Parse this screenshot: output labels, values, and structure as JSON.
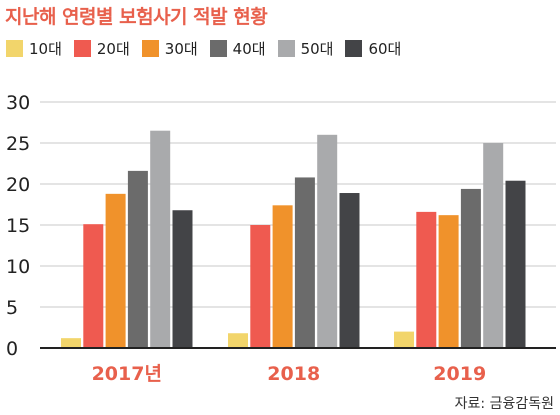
{
  "title": "지난해 연령별 보험사기 적발 현황",
  "source": "자료: 금융감독원",
  "colors": {
    "title": "#e8604c",
    "grid": "#c8c8c8",
    "axis": "#222222",
    "category_label": "#e8604c"
  },
  "chart_data": {
    "type": "bar",
    "categories": [
      "2017년",
      "2018",
      "2019"
    ],
    "series": [
      {
        "name": "10대",
        "color": "#f2d56b",
        "values": [
          1.2,
          1.8,
          2.0
        ]
      },
      {
        "name": "20대",
        "color": "#ef5a50",
        "values": [
          15.1,
          15.0,
          16.6
        ]
      },
      {
        "name": "30대",
        "color": "#f0922b",
        "values": [
          18.8,
          17.4,
          16.2
        ]
      },
      {
        "name": "40대",
        "color": "#6b6b6b",
        "values": [
          21.6,
          20.8,
          19.4
        ]
      },
      {
        "name": "50대",
        "color": "#a9aaac",
        "values": [
          26.5,
          26.0,
          25.0
        ]
      },
      {
        "name": "60대",
        "color": "#434447",
        "values": [
          16.8,
          18.9,
          20.4
        ]
      }
    ],
    "yticks": [
      "0",
      "5",
      "10",
      "15",
      "20",
      "25",
      "30"
    ],
    "ylim": [
      0,
      30
    ],
    "grid": true,
    "legend": "top-left"
  }
}
